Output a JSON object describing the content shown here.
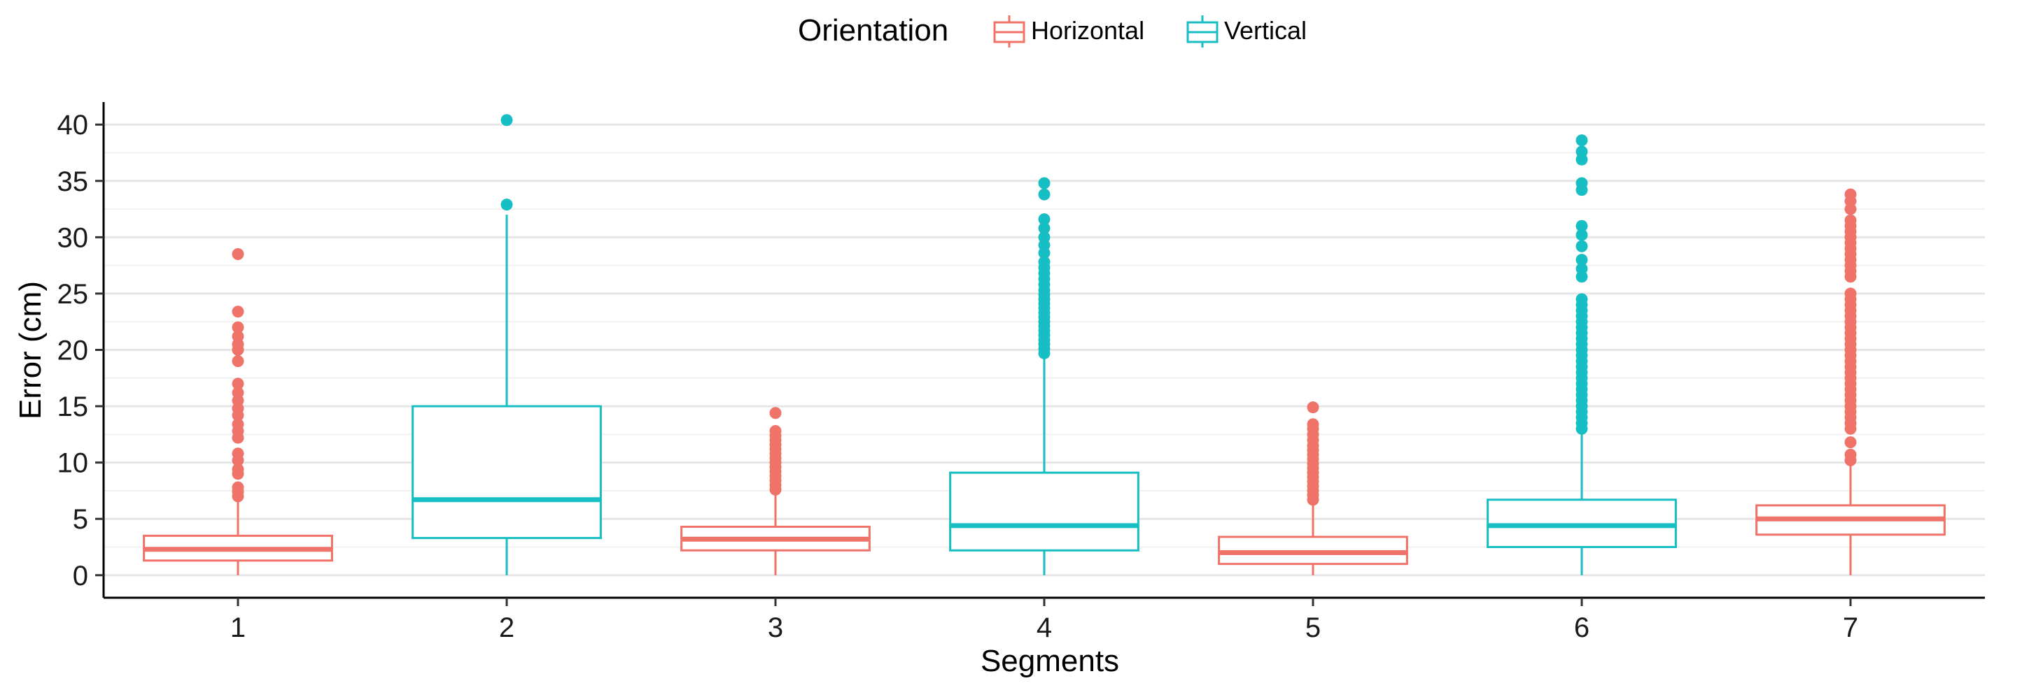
{
  "chart_data": {
    "type": "box",
    "xlabel": "Segments",
    "ylabel": "Error (cm)",
    "categories": [
      "1",
      "2",
      "3",
      "4",
      "5",
      "6",
      "7"
    ],
    "ylim": [
      -2,
      42
    ],
    "yticks": [
      0,
      5,
      10,
      15,
      20,
      25,
      30,
      35,
      40
    ],
    "grid": true,
    "legend": {
      "title": "Orientation",
      "position": "top",
      "entries": [
        {
          "label": "Horizontal",
          "color": "#f0736a"
        },
        {
          "label": "Vertical",
          "color": "#17bec4"
        }
      ]
    },
    "boxes": [
      {
        "category": "1",
        "group": "Horizontal",
        "min": 0,
        "q1": 1.3,
        "median": 2.3,
        "q3": 3.5,
        "whisker_high": 6.6,
        "outliers": [
          7,
          7.4,
          7.8,
          9,
          9.4,
          10.2,
          10.8,
          12.2,
          12.8,
          13.4,
          14.2,
          14.8,
          15.5,
          16.2,
          17,
          19,
          20,
          20.5,
          21.2,
          22,
          23.4,
          28.5
        ]
      },
      {
        "category": "2",
        "group": "Vertical",
        "min": 0,
        "q1": 3.3,
        "median": 6.7,
        "q3": 15,
        "whisker_high": 32,
        "outliers": [
          32.9,
          40.4
        ]
      },
      {
        "category": "3",
        "group": "Horizontal",
        "min": 0,
        "q1": 2.2,
        "median": 3.2,
        "q3": 4.3,
        "whisker_high": 7.4,
        "outliers": [
          7.6,
          8,
          8.4,
          8.8,
          9.2,
          9.6,
          10,
          10.4,
          10.8,
          11.2,
          11.6,
          12,
          12.4,
          12.8,
          14.4
        ]
      },
      {
        "category": "4",
        "group": "Vertical",
        "min": 0,
        "q1": 2.2,
        "median": 4.4,
        "q3": 9.1,
        "whisker_high": 19.5,
        "outliers": [
          19.7,
          20.1,
          20.5,
          20.9,
          21.3,
          21.7,
          22.1,
          22.5,
          22.9,
          23.3,
          23.7,
          24.1,
          24.5,
          24.9,
          25.3,
          25.8,
          26.3,
          26.8,
          27.3,
          27.8,
          28.6,
          29.3,
          30,
          30.8,
          31.6,
          33.8,
          34.8
        ]
      },
      {
        "category": "5",
        "group": "Horizontal",
        "min": 0,
        "q1": 1.0,
        "median": 2.0,
        "q3": 3.4,
        "whisker_high": 6.4,
        "outliers": [
          6.7,
          7.1,
          7.5,
          7.9,
          8.3,
          8.7,
          9.1,
          9.5,
          9.9,
          10.3,
          10.7,
          11.1,
          11.5,
          12,
          12.5,
          13,
          13.4,
          14.9
        ]
      },
      {
        "category": "6",
        "group": "Vertical",
        "min": 0,
        "q1": 2.5,
        "median": 4.4,
        "q3": 6.7,
        "whisker_high": 12.8,
        "outliers": [
          13,
          13.5,
          14,
          14.5,
          15,
          15.5,
          16,
          16.5,
          17,
          17.5,
          18,
          18.5,
          19,
          19.5,
          20,
          20.5,
          21,
          21.5,
          22,
          22.5,
          23,
          23.5,
          24,
          24.5,
          26.5,
          27.2,
          28,
          29.2,
          30.2,
          31,
          34.2,
          34.8,
          36.9,
          37.6,
          38.6
        ]
      },
      {
        "category": "7",
        "group": "Horizontal",
        "min": 0,
        "q1": 3.6,
        "median": 5.0,
        "q3": 6.2,
        "whisker_high": 9.9,
        "outliers": [
          10.2,
          10.7,
          11.8,
          13,
          13.5,
          14,
          14.5,
          15,
          15.5,
          16,
          16.5,
          17,
          17.5,
          18,
          18.5,
          19,
          19.5,
          20,
          20.5,
          21,
          21.5,
          22,
          22.5,
          23,
          23.5,
          24,
          24.5,
          25,
          26.5,
          27,
          27.5,
          28,
          28.5,
          29,
          29.5,
          30,
          30.5,
          31,
          31.5,
          32.5,
          33.2,
          33.8
        ]
      }
    ]
  }
}
